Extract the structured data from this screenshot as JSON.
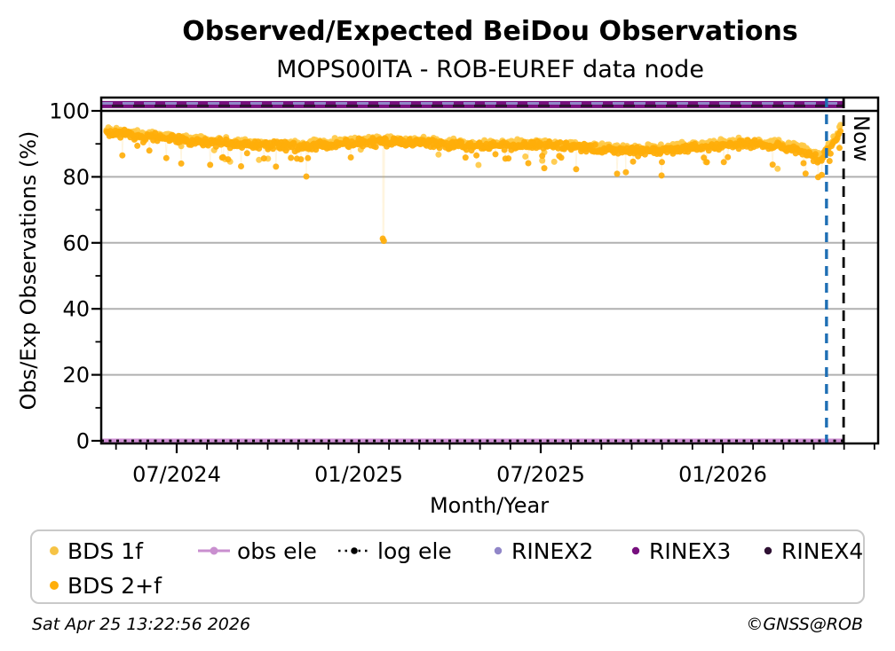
{
  "footer": {
    "timestamp": "Sat Apr 25 13:22:56 2026",
    "copyright": "©GNSS@ROB"
  },
  "colors": {
    "bds_1f": "#ffc945",
    "bds_2f": "#ffae0a",
    "obs_ele": "#cf8fd4",
    "log_ele": "#000000",
    "rinex2": "#9186c8",
    "rinex3": "#77107e",
    "rinex4": "#2f1133",
    "latest_marker_blue": "#1f6fb4",
    "grid": "#b0b0b0",
    "reference_black": "#000000"
  },
  "chart_data": {
    "type": "scatter",
    "title": "Observed/Expected BeiDou Observations",
    "subtitle": "MOPS00ITA - ROB-EUREF data node",
    "xlabel": "Month/Year",
    "ylabel": "Obs/Exp Observations (%)",
    "xlim_decimal_year": [
      2024.293,
      2026.424
    ],
    "ylim": [
      0,
      104.5
    ],
    "yticks": [
      0,
      20,
      40,
      60,
      80,
      100
    ],
    "y_minor_ticks": [
      10,
      30,
      50,
      70,
      90
    ],
    "xticks": [
      {
        "decimal_year": 2024.5,
        "label": "07/2024"
      },
      {
        "decimal_year": 2025.0,
        "label": "01/2025"
      },
      {
        "decimal_year": 2025.5,
        "label": "07/2025"
      },
      {
        "decimal_year": 2026.0,
        "label": "01/2026"
      }
    ],
    "x_minor_tick_step_months": 1,
    "grid": "horizontal-major-only",
    "reference_line": {
      "y": 100,
      "style": "solid",
      "color": "#000000"
    },
    "now_marker": {
      "decimal_year": 2026.332,
      "label": "Now",
      "style": "dashed",
      "color": "#000000"
    },
    "latest_data_marker": {
      "decimal_year": 2026.285,
      "style": "dashed",
      "color": "#1f6fb4"
    },
    "band_trend_pct": [
      [
        2024.307,
        93.6
      ],
      [
        2024.4,
        92.2
      ],
      [
        2024.55,
        90.8
      ],
      [
        2024.7,
        89.6
      ],
      [
        2024.85,
        89.2
      ],
      [
        2024.95,
        90.0
      ],
      [
        2025.07,
        90.6
      ],
      [
        2025.2,
        90.1
      ],
      [
        2025.35,
        89.2
      ],
      [
        2025.5,
        89.6
      ],
      [
        2025.62,
        88.7
      ],
      [
        2025.75,
        87.7
      ],
      [
        2025.85,
        88.2
      ],
      [
        2025.95,
        89.2
      ],
      [
        2026.05,
        90.1
      ],
      [
        2026.15,
        89.4
      ],
      [
        2026.22,
        87.9
      ],
      [
        2026.265,
        85.2
      ],
      [
        2026.3,
        89.5
      ],
      [
        2026.325,
        94.3
      ]
    ],
    "series": [
      {
        "name": "BDS 1f",
        "kind": "scatter-band",
        "color": "#ffc945",
        "t_start": 2024.307,
        "t_end": 2026.325,
        "points_per_year": 365,
        "trend_offset": 0.7,
        "noise": 0.9,
        "dip_probability": 0.04,
        "seed": 101,
        "outliers": []
      },
      {
        "name": "BDS 2+f",
        "kind": "scatter-band",
        "color": "#ffae0a",
        "t_start": 2024.307,
        "t_end": 2026.325,
        "points_per_year": 365,
        "trend_offset": 0.0,
        "noise": 1.0,
        "dip_probability": 0.06,
        "seed": 202,
        "outliers": [
          [
            2024.856,
            80.1
          ],
          [
            2025.066,
            61.3
          ],
          [
            2025.069,
            60.6
          ],
          [
            2025.734,
            81.4
          ],
          [
            2025.832,
            80.4
          ],
          [
            2026.262,
            79.9
          ],
          [
            2026.272,
            80.6
          ]
        ]
      },
      {
        "name": "obs ele",
        "kind": "hline",
        "y": 0,
        "plotted_y": 0,
        "color": "#cf8fd4",
        "width": 5,
        "style": "solid",
        "t_end": 2026.332
      },
      {
        "name": "log ele",
        "kind": "hline",
        "y": 0,
        "plotted_y": 0,
        "color": "#000000",
        "width": 2.8,
        "style": "dotted",
        "t_end": 2026.332
      },
      {
        "name": "RINEX2",
        "kind": "hline",
        "y": 100,
        "plotted_y": 102.3,
        "color": "#9186c8",
        "width": 3,
        "style": "dashed",
        "t_end": 2026.332
      },
      {
        "name": "RINEX3",
        "kind": "hline",
        "y": 100,
        "plotted_y": 101.9,
        "color": "#77107e",
        "width": 8,
        "style": "solid",
        "t_end": 2026.332
      },
      {
        "name": "RINEX4",
        "kind": "hline",
        "y": 100,
        "plotted_y": 101.5,
        "color": "#2f1133",
        "width": 3,
        "style": "dashed",
        "t_end": 2026.332
      }
    ],
    "legend": {
      "position": "below",
      "items": [
        {
          "label": "BDS 1f",
          "marker": "dot",
          "color": "#f6c345"
        },
        {
          "label": "obs ele",
          "marker": "line-dot",
          "color": "#c98fcf"
        },
        {
          "label": "log ele",
          "marker": "dotted-line-dot",
          "color": "#000000"
        },
        {
          "label": "RINEX2",
          "marker": "dot-small",
          "color": "#9186c8"
        },
        {
          "label": "RINEX3",
          "marker": "dot-small",
          "color": "#77107e"
        },
        {
          "label": "RINEX4",
          "marker": "dot-small",
          "color": "#2f1133"
        },
        {
          "label": "BDS 2+f",
          "marker": "dot",
          "color": "#ffae0a"
        }
      ]
    }
  }
}
